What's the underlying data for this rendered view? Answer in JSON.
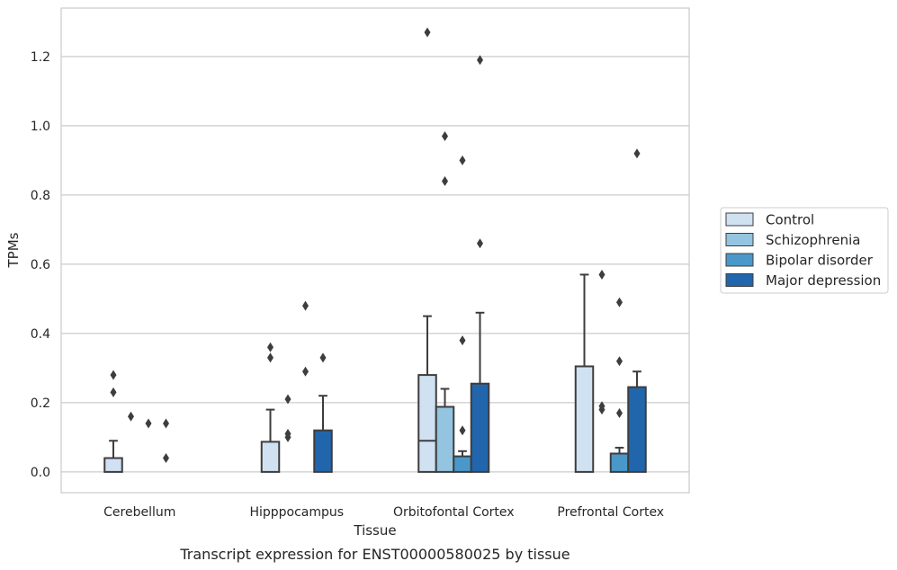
{
  "caption": "Transcript expression for ENST00000580025 by tissue",
  "chart_data": {
    "type": "box",
    "xlabel": "Tissue",
    "ylabel": "TPMs",
    "ylim": [
      -0.06,
      1.34
    ],
    "yticks": [
      "0.0",
      "0.2",
      "0.4",
      "0.6",
      "0.8",
      "1.0",
      "1.2"
    ],
    "grid": "horizontal",
    "legend_position": "right",
    "categories": [
      "Cerebellum",
      "Hipppocampus",
      "Orbitofontal Cortex",
      "Prefrontal Cortex"
    ],
    "series": [
      {
        "name": "Control",
        "color": "#d0e1f2",
        "boxes": [
          {
            "q1": 0,
            "median": 0,
            "q3": 0.04,
            "whisker_low": 0,
            "whisker_high": 0.09,
            "outliers": [
              0.23,
              0.28
            ]
          },
          {
            "q1": 0,
            "median": 0,
            "q3": 0.087,
            "whisker_low": 0,
            "whisker_high": 0.18,
            "outliers": [
              0.33,
              0.36
            ]
          },
          {
            "q1": 0,
            "median": 0.09,
            "q3": 0.28,
            "whisker_low": 0,
            "whisker_high": 0.45,
            "outliers": [
              1.27
            ]
          },
          {
            "q1": 0,
            "median": 0,
            "q3": 0.305,
            "whisker_low": 0,
            "whisker_high": 0.57,
            "outliers": []
          }
        ]
      },
      {
        "name": "Schizophrenia",
        "color": "#94c4df",
        "boxes": [
          {
            "q1": 0,
            "median": 0,
            "q3": 0,
            "whisker_low": 0,
            "whisker_high": 0,
            "outliers": [
              0.16
            ]
          },
          {
            "q1": 0,
            "median": 0,
            "q3": 0,
            "whisker_low": 0,
            "whisker_high": 0,
            "outliers": [
              0.1,
              0.11,
              0.21
            ]
          },
          {
            "q1": 0,
            "median": 0,
            "q3": 0.188,
            "whisker_low": 0,
            "whisker_high": 0.24,
            "outliers": [
              0.84,
              0.97
            ]
          },
          {
            "q1": 0,
            "median": 0,
            "q3": 0,
            "whisker_low": 0,
            "whisker_high": 0,
            "outliers": [
              0.18,
              0.19,
              0.57
            ]
          }
        ]
      },
      {
        "name": "Bipolar disorder",
        "color": "#4a98c9",
        "boxes": [
          {
            "q1": 0,
            "median": 0,
            "q3": 0,
            "whisker_low": 0,
            "whisker_high": 0,
            "outliers": [
              0.14
            ]
          },
          {
            "q1": 0,
            "median": 0,
            "q3": 0,
            "whisker_low": 0,
            "whisker_high": 0,
            "outliers": [
              0.29,
              0.48
            ]
          },
          {
            "q1": 0,
            "median": 0,
            "q3": 0.045,
            "whisker_low": 0,
            "whisker_high": 0.06,
            "outliers": [
              0.12,
              0.38,
              0.9
            ]
          },
          {
            "q1": 0,
            "median": 0,
            "q3": 0.053,
            "whisker_low": 0,
            "whisker_high": 0.07,
            "outliers": [
              0.17,
              0.32,
              0.49
            ]
          }
        ]
      },
      {
        "name": "Major depression",
        "color": "#2166ac",
        "boxes": [
          {
            "q1": 0,
            "median": 0,
            "q3": 0,
            "whisker_low": 0,
            "whisker_high": 0,
            "outliers": [
              0.04,
              0.14
            ]
          },
          {
            "q1": 0,
            "median": 0,
            "q3": 0.12,
            "whisker_low": 0,
            "whisker_high": 0.22,
            "outliers": [
              0.33
            ]
          },
          {
            "q1": 0,
            "median": 0,
            "q3": 0.255,
            "whisker_low": 0,
            "whisker_high": 0.46,
            "outliers": [
              0.66,
              1.19
            ]
          },
          {
            "q1": 0,
            "median": 0,
            "q3": 0.245,
            "whisker_low": 0,
            "whisker_high": 0.29,
            "outliers": [
              0.92
            ]
          }
        ]
      }
    ]
  }
}
